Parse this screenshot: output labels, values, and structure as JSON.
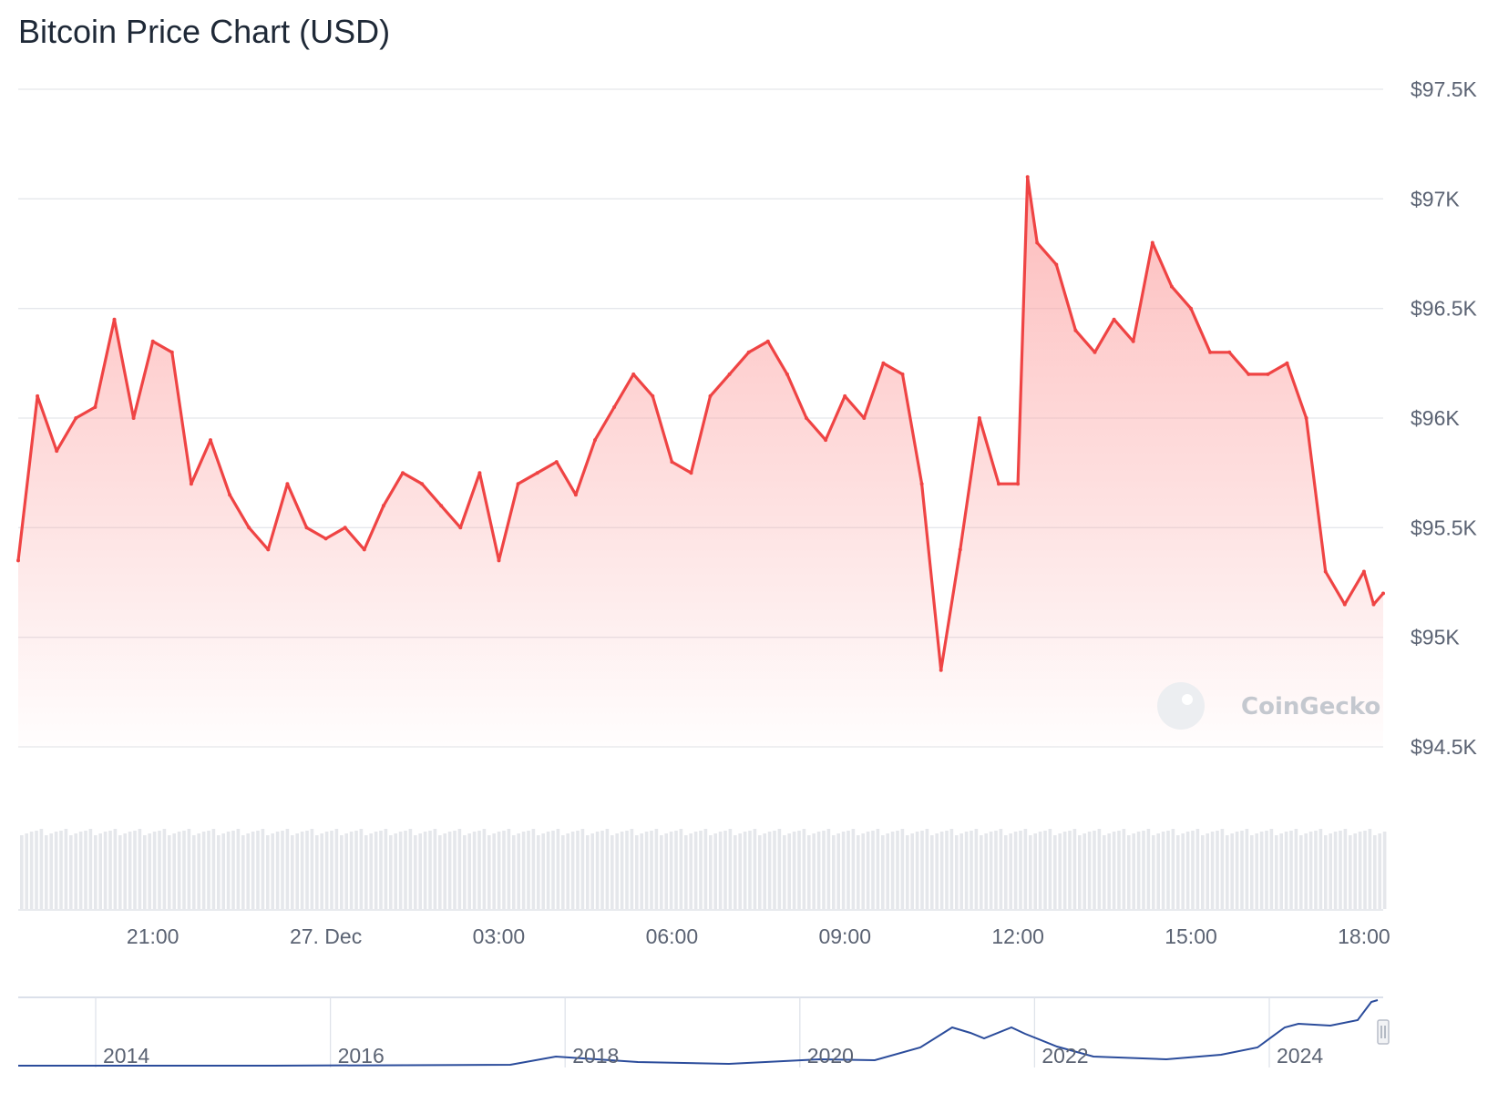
{
  "title": "Bitcoin Price Chart (USD)",
  "watermark": "CoinGecko",
  "colors": {
    "line": "#ef4444",
    "fill": "#fca5a5",
    "grid": "#e5e7eb",
    "volume": "#e5e7eb",
    "navigator": "#2b4c9b"
  },
  "chart_data": {
    "type": "area",
    "title": "Bitcoin Price Chart (USD)",
    "xlabel": "",
    "ylabel": "",
    "ylim": [
      94500,
      97500
    ],
    "y_ticks": [
      {
        "value": 97500,
        "label": "$97.5K"
      },
      {
        "value": 97000,
        "label": "$97K"
      },
      {
        "value": 96500,
        "label": "$96.5K"
      },
      {
        "value": 96000,
        "label": "$96K"
      },
      {
        "value": 95500,
        "label": "$95.5K"
      },
      {
        "value": 95000,
        "label": "$95K"
      },
      {
        "value": 94500,
        "label": "$94.5K"
      }
    ],
    "xlim": [
      "26 Dec 18:40",
      "27 Dec 18:20"
    ],
    "x_ticks": [
      {
        "time": "26 Dec 21:00",
        "label": "21:00"
      },
      {
        "time": "27 Dec 00:00",
        "label": "27. Dec"
      },
      {
        "time": "27 Dec 03:00",
        "label": "03:00"
      },
      {
        "time": "27 Dec 06:00",
        "label": "06:00"
      },
      {
        "time": "27 Dec 09:00",
        "label": "09:00"
      },
      {
        "time": "27 Dec 12:00",
        "label": "12:00"
      },
      {
        "time": "27 Dec 15:00",
        "label": "15:00"
      },
      {
        "time": "27 Dec 18:00",
        "label": "18:00"
      }
    ],
    "grid": true,
    "series": [
      {
        "x": [
          "26 Dec 18:40",
          "26 Dec 19:00",
          "26 Dec 19:20",
          "26 Dec 19:40",
          "26 Dec 20:00",
          "26 Dec 20:20",
          "26 Dec 20:40",
          "26 Dec 21:00",
          "26 Dec 21:20",
          "26 Dec 21:40",
          "26 Dec 22:00",
          "26 Dec 22:20",
          "26 Dec 22:40",
          "26 Dec 23:00",
          "26 Dec 23:20",
          "26 Dec 23:40",
          "27 Dec 00:00",
          "27 Dec 00:20",
          "27 Dec 00:40",
          "27 Dec 01:00",
          "27 Dec 01:20",
          "27 Dec 01:40",
          "27 Dec 02:00",
          "27 Dec 02:20",
          "27 Dec 02:40",
          "27 Dec 03:00",
          "27 Dec 03:20",
          "27 Dec 03:40",
          "27 Dec 04:00",
          "27 Dec 04:20",
          "27 Dec 04:40",
          "27 Dec 05:00",
          "27 Dec 05:20",
          "27 Dec 05:40",
          "27 Dec 06:00",
          "27 Dec 06:20",
          "27 Dec 06:40",
          "27 Dec 07:00",
          "27 Dec 07:20",
          "27 Dec 07:40",
          "27 Dec 08:00",
          "27 Dec 08:20",
          "27 Dec 08:40",
          "27 Dec 09:00",
          "27 Dec 09:20",
          "27 Dec 09:40",
          "27 Dec 10:00",
          "27 Dec 10:20",
          "27 Dec 10:40",
          "27 Dec 11:00",
          "27 Dec 11:20",
          "27 Dec 11:40",
          "27 Dec 12:00",
          "27 Dec 12:10",
          "27 Dec 12:20",
          "27 Dec 12:40",
          "27 Dec 13:00",
          "27 Dec 13:20",
          "27 Dec 13:40",
          "27 Dec 14:00",
          "27 Dec 14:20",
          "27 Dec 14:40",
          "27 Dec 15:00",
          "27 Dec 15:20",
          "27 Dec 15:40",
          "27 Dec 16:00",
          "27 Dec 16:20",
          "27 Dec 16:40",
          "27 Dec 17:00",
          "27 Dec 17:20",
          "27 Dec 17:40",
          "27 Dec 18:00",
          "27 Dec 18:10",
          "27 Dec 18:20"
        ],
        "values": [
          95350,
          96100,
          95850,
          96000,
          96050,
          96450,
          96000,
          96350,
          96300,
          95700,
          95900,
          95650,
          95500,
          95400,
          95700,
          95500,
          95450,
          95500,
          95400,
          95600,
          95750,
          95700,
          95600,
          95500,
          95750,
          95350,
          95700,
          95750,
          95800,
          95650,
          95900,
          96050,
          96200,
          96100,
          95800,
          95750,
          96100,
          96200,
          96300,
          96350,
          96200,
          96000,
          95900,
          96100,
          96000,
          96250,
          96200,
          95700,
          94850,
          95400,
          96000,
          95700,
          95700,
          97100,
          96800,
          96700,
          96400,
          96300,
          96450,
          96350,
          96800,
          96600,
          96500,
          96300,
          96300,
          96200,
          96200,
          96250,
          96000,
          95300,
          95150,
          95300,
          95150,
          95200
        ]
      }
    ],
    "navigator": {
      "type": "line",
      "x_ticks": [
        "2014",
        "2016",
        "2018",
        "2020",
        "2022",
        "2024"
      ]
    }
  }
}
